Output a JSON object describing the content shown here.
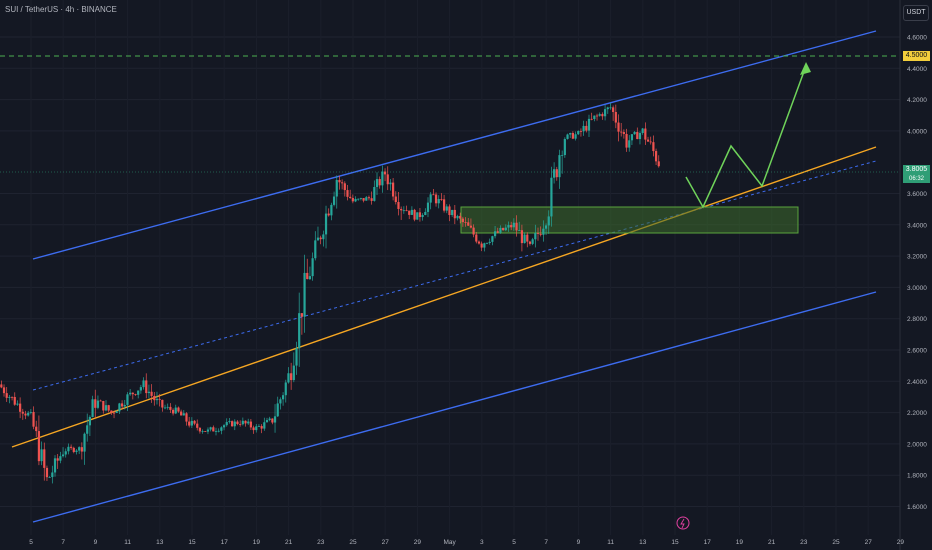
{
  "header": {
    "symbol_title": "SUI / TetherUS · 4h · BINANCE",
    "currency_badge": "USDT"
  },
  "price_axis": {
    "labels": [
      "4.6000",
      "4.4000",
      "4.2000",
      "4.0000",
      "3.6000",
      "3.4000",
      "3.2000",
      "3.0000",
      "2.8000",
      "2.6000",
      "2.4000",
      "2.2000",
      "2.0000",
      "1.8000",
      "1.6000"
    ],
    "target_label": "4.5000",
    "current_price_label": "3.8005",
    "countdown_label": "06:32"
  },
  "time_axis": {
    "labels": [
      "5",
      "7",
      "9",
      "11",
      "13",
      "15",
      "17",
      "19",
      "21",
      "23",
      "25",
      "27",
      "29",
      "May",
      "3",
      "5",
      "7",
      "9",
      "11",
      "13",
      "15",
      "17",
      "19",
      "21",
      "23",
      "25",
      "27",
      "29"
    ]
  },
  "colors": {
    "background": "#141823",
    "up_candle": "#26a69a",
    "down_candle": "#ef5350",
    "channel": "#3d6cf0",
    "support": "#f5a623",
    "target_line": "#4caf50",
    "projection": "#6fd35a",
    "zone_fill": "#3d6b2c"
  },
  "chart_data": {
    "type": "candlestick",
    "title": "SUI / TetherUS · 4h · BINANCE",
    "ylim": [
      1.6,
      4.7
    ],
    "x_range": [
      "Apr 4",
      "May 29"
    ],
    "key_levels": {
      "target": 4.5,
      "current": 3.8005
    },
    "price_path": [
      {
        "date": "Apr 4",
        "close": 2.38
      },
      {
        "date": "Apr 5",
        "close": 2.27
      },
      {
        "date": "Apr 6",
        "close": 2.17
      },
      {
        "date": "Apr 7",
        "close": 1.76
      },
      {
        "date": "Apr 8",
        "close": 1.96
      },
      {
        "date": "Apr 9",
        "close": 1.97
      },
      {
        "date": "Apr 10",
        "close": 2.28
      },
      {
        "date": "Apr 11",
        "close": 2.2
      },
      {
        "date": "Apr 12",
        "close": 2.3
      },
      {
        "date": "Apr 13",
        "close": 2.38
      },
      {
        "date": "Apr 14",
        "close": 2.24
      },
      {
        "date": "Apr 15",
        "close": 2.21
      },
      {
        "date": "Apr 16",
        "close": 2.12
      },
      {
        "date": "Apr 17",
        "close": 2.08
      },
      {
        "date": "Apr 18",
        "close": 2.12
      },
      {
        "date": "Apr 19",
        "close": 2.14
      },
      {
        "date": "Apr 20",
        "close": 2.1
      },
      {
        "date": "Apr 21",
        "close": 2.15
      },
      {
        "date": "Apr 22",
        "close": 2.43
      },
      {
        "date": "Apr 23",
        "close": 2.98
      },
      {
        "date": "Apr 24",
        "close": 3.35
      },
      {
        "date": "Apr 25",
        "close": 3.7
      },
      {
        "date": "Apr 26",
        "close": 3.55
      },
      {
        "date": "Apr 27",
        "close": 3.57
      },
      {
        "date": "Apr 28",
        "close": 3.73
      },
      {
        "date": "Apr 29",
        "close": 3.52
      },
      {
        "date": "Apr 30",
        "close": 3.45
      },
      {
        "date": "May 1",
        "close": 3.58
      },
      {
        "date": "May 2",
        "close": 3.48
      },
      {
        "date": "May 3",
        "close": 3.4
      },
      {
        "date": "May 4",
        "close": 3.28
      },
      {
        "date": "May 5",
        "close": 3.35
      },
      {
        "date": "May 6",
        "close": 3.4
      },
      {
        "date": "May 7",
        "close": 3.24
      },
      {
        "date": "May 8",
        "close": 3.45
      },
      {
        "date": "May 9",
        "close": 3.95
      },
      {
        "date": "May 10",
        "close": 3.98
      },
      {
        "date": "May 11",
        "close": 4.08
      },
      {
        "date": "May 12",
        "close": 4.15
      },
      {
        "date": "May 13",
        "close": 3.93
      },
      {
        "date": "May 14",
        "close": 4.0
      },
      {
        "date": "May 15",
        "close": 3.8
      }
    ],
    "grid": true
  }
}
